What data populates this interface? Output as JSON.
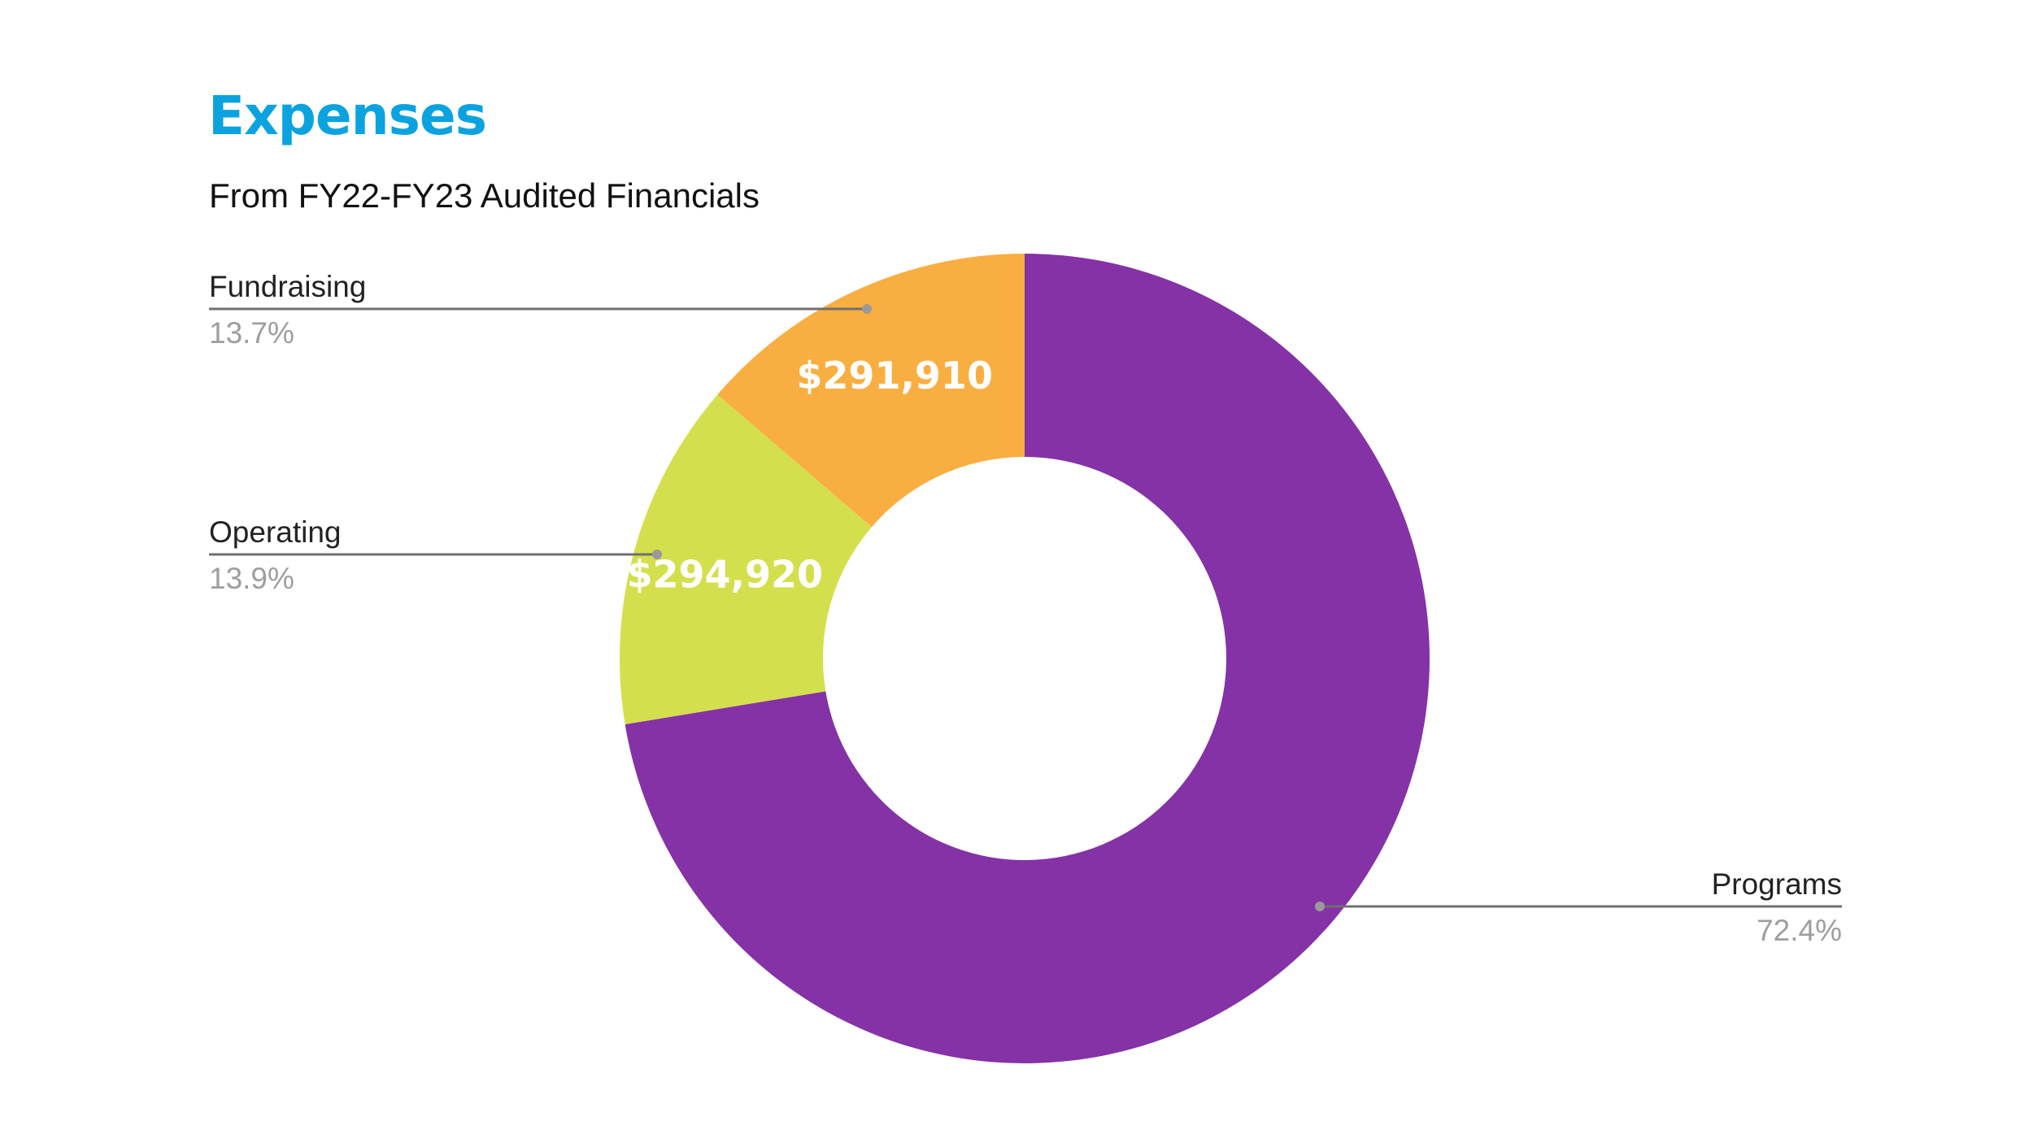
{
  "page": {
    "title": "Expenses",
    "subtitle": "From FY22-FY23 Audited Financials",
    "colors": {
      "title": "#0aa3df",
      "background": "#ffffff",
      "leader_line": "#6f6f6f",
      "leader_dot": "#9a9a9a"
    }
  },
  "chart_data": {
    "type": "pie",
    "donut": true,
    "title": "Expenses",
    "subtitle": "From FY22-FY23 Audited Financials",
    "slices": [
      {
        "name": "Programs",
        "percent": 72.4,
        "percent_label": "72.4%",
        "value_label": "",
        "color": "#8432a6",
        "callout_side": "right"
      },
      {
        "name": "Operating",
        "percent": 13.9,
        "percent_label": "13.9%",
        "value_label": "$294,920",
        "color": "#d4df4d",
        "callout_side": "left"
      },
      {
        "name": "Fundraising",
        "percent": 13.7,
        "percent_label": "13.7%",
        "value_label": "$291,910",
        "color": "#f9ae41",
        "callout_side": "left"
      }
    ],
    "legend": "callouts"
  }
}
